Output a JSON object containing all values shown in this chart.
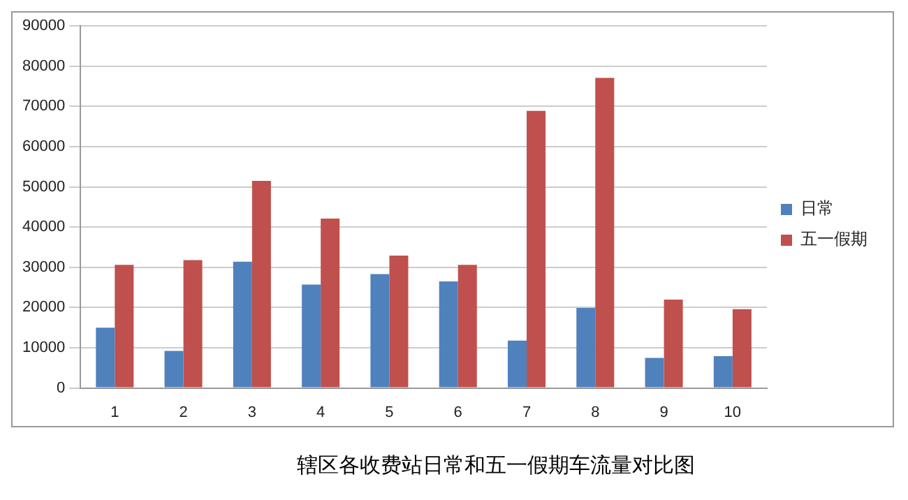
{
  "chart_data": {
    "type": "bar",
    "title": "辖区各收费站日常和五一假期车流量对比图",
    "categories": [
      "1",
      "2",
      "3",
      "4",
      "5",
      "6",
      "7",
      "8",
      "9",
      "10"
    ],
    "series": [
      {
        "name": "日常",
        "color": "#4f81bd",
        "values": [
          15000,
          9200,
          31400,
          25700,
          28300,
          26500,
          11800,
          19900,
          7500,
          7900
        ]
      },
      {
        "name": "五一假期",
        "color": "#c0504d",
        "values": [
          30600,
          31800,
          51500,
          42100,
          32900,
          30600,
          68900,
          77100,
          22000,
          19600
        ]
      }
    ],
    "ylim": [
      0,
      90000
    ],
    "yticks": [
      0,
      10000,
      20000,
      30000,
      40000,
      50000,
      60000,
      70000,
      80000,
      90000
    ],
    "grid": "y",
    "legend": "right"
  }
}
